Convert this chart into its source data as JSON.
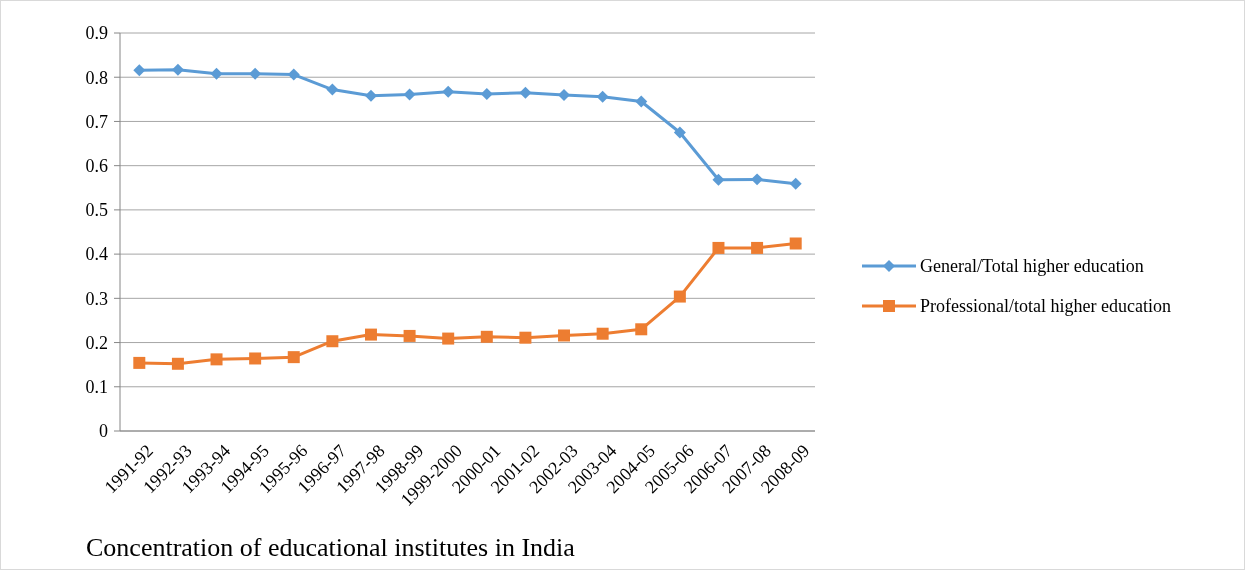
{
  "chart_data": {
    "type": "line",
    "title": "Concentration of educational institutes in India",
    "categories": [
      "1991-92",
      "1992-93",
      "1993-94",
      "1994-95",
      "1995-96",
      "1996-97",
      "1997-98",
      "1998-99",
      "1999-2000",
      "2000-01",
      "2001-02",
      "2002-03",
      "2003-04",
      "2004-05",
      "2005-06",
      "2006-07",
      "2007-08",
      "2008-09"
    ],
    "series": [
      {
        "name": "General/Total higher education",
        "color": "#5b9bd5",
        "marker": "diamond",
        "values": [
          0.816,
          0.817,
          0.808,
          0.808,
          0.806,
          0.772,
          0.758,
          0.761,
          0.767,
          0.762,
          0.765,
          0.76,
          0.756,
          0.745,
          0.675,
          0.568,
          0.569,
          0.559
        ]
      },
      {
        "name": "Professional/total higher education",
        "color": "#ed7d31",
        "marker": "square",
        "values": [
          0.154,
          0.152,
          0.162,
          0.164,
          0.167,
          0.203,
          0.218,
          0.215,
          0.209,
          0.213,
          0.211,
          0.216,
          0.22,
          0.23,
          0.304,
          0.414,
          0.414,
          0.424
        ]
      }
    ],
    "ylim": [
      0,
      0.9
    ],
    "yticks": [
      0,
      0.1,
      0.2,
      0.3,
      0.4,
      0.5,
      0.6,
      0.7,
      0.8,
      0.9
    ],
    "grid": "y",
    "legend": "right"
  }
}
